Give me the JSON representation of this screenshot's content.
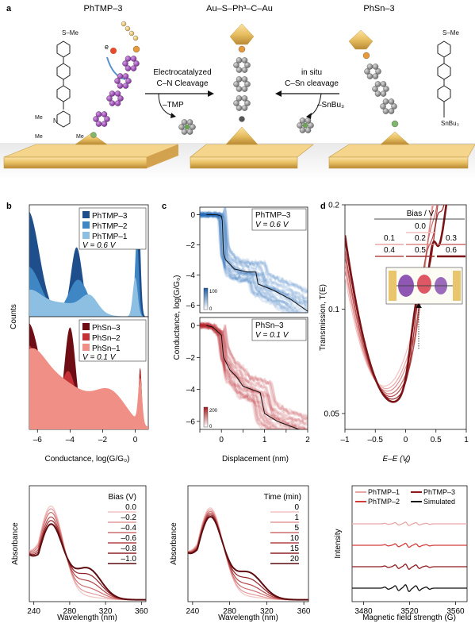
{
  "panel_a": {
    "letter": "a",
    "left_title": "PhTMP–3",
    "center_title": "Au–S–Ph³–C–Au",
    "right_title": "PhSn–3",
    "electron": "e",
    "left_arrow_line1": "Electrocatalyzed",
    "left_arrow_line2": "C–N Cleavage",
    "left_byproduct": "–TMP",
    "right_arrow_line1": "in situ",
    "right_arrow_line2": "C–Sn cleavage",
    "right_byproduct": "–SnBu₃",
    "left_mol_top": "S–Me",
    "left_mol_n": "N",
    "left_mol_me": "Me",
    "right_mol_top": "S–Me",
    "right_mol_bottom": "SnBu₃"
  },
  "panel_b": {
    "letter": "b",
    "ylabel": "Counts",
    "xlabel": "Conductance, log(G/G₀)",
    "top_legend": [
      "PhTMP–3",
      "PhTMP–2",
      "PhTMP–1"
    ],
    "top_bias": "V = 0.6 V",
    "bottom_legend": [
      "PhSn–3",
      "PhSn–2",
      "PhSn–1"
    ],
    "bottom_bias": "V = 0.1 V",
    "bias_sub": "Bias",
    "colors_top": [
      "#1f4e8c",
      "#3f86c4",
      "#8dbfe3"
    ],
    "colors_bottom": [
      "#6e0d14",
      "#c43136",
      "#ef8f86"
    ]
  },
  "panel_c": {
    "letter": "c",
    "ylabel": "Conductance, log(G/G₀)",
    "xlabel": "Displacement (nm)",
    "top_label": "PhTMP–3",
    "top_bias": "V = 0.6 V",
    "top_cbar_max": "100",
    "top_cbar_min": "0",
    "bottom_label": "PhSn–3",
    "bottom_bias": "V = 0.1 V",
    "bottom_cbar_max": "200",
    "bottom_cbar_min": "0",
    "bias_sub": "Bias"
  },
  "panel_d": {
    "letter": "d",
    "ylabel": "Transmission, T(E)",
    "xlabel": "E–E (V)",
    "xlabel_sub": "F",
    "legend_title": "Bias / V",
    "legend_items": [
      "0.0",
      "0.1",
      "0.2",
      "0.3",
      "0.4",
      "0.5",
      "0.6"
    ]
  },
  "panel_e": {
    "ylabel": "Absorbance",
    "xlabel": "Wavelength (nm)",
    "legend_title": "Bias (V)",
    "legend_items": [
      "0.0",
      "–0.2",
      "–0.4",
      "–0.6",
      "–0.8",
      "–1.0"
    ]
  },
  "panel_f": {
    "ylabel": "Absorbance",
    "xlabel": "Wavelength (nm)",
    "legend_title": "Time (min)",
    "legend_items": [
      "0",
      "1",
      "5",
      "10",
      "15",
      "20"
    ]
  },
  "panel_g": {
    "ylabel": "Intensity",
    "xlabel": "Magnetic field strength (G)",
    "legend_items": [
      "PhTMP–1",
      "PhTMP–3",
      "PhTMP–2",
      "Simulated"
    ]
  },
  "chart_data": [
    {
      "type": "area",
      "id": "b_top",
      "xlabel": "Conductance, log(G/G₀)",
      "ylabel": "Counts",
      "xlim": [
        -6.5,
        0.8
      ],
      "x_ticks": [
        -6,
        -4,
        -2,
        0
      ],
      "series": [
        {
          "name": "PhTMP–3",
          "peaks": [
            [
              -6.6,
              0.95,
              0.7
            ],
            [
              -3.6,
              0.62,
              0.35
            ],
            [
              0.2,
              0.95,
              0.12
            ]
          ]
        },
        {
          "name": "PhTMP–2",
          "peaks": [
            [
              -6.6,
              0.45,
              0.8
            ],
            [
              -3.5,
              0.33,
              0.6
            ],
            [
              0.1,
              0.7,
              0.12
            ]
          ]
        },
        {
          "name": "PhTMP–1",
          "peaks": [
            [
              -6.6,
              0.2,
              0.8
            ],
            [
              -4.5,
              0.12,
              1.4
            ],
            [
              -2.8,
              0.14,
              0.5
            ],
            [
              0.0,
              0.35,
              0.15
            ]
          ]
        }
      ]
    },
    {
      "type": "area",
      "id": "b_bottom",
      "xlim": [
        -6.5,
        0.8
      ],
      "x_ticks": [
        -6,
        -4,
        -2,
        0
      ],
      "series": [
        {
          "name": "PhSn–3",
          "peaks": [
            [
              -6.6,
              0.95,
              0.8
            ],
            [
              -4.0,
              0.9,
              0.35
            ],
            [
              0.3,
              0.55,
              0.1
            ]
          ]
        },
        {
          "name": "PhSn–2",
          "peaks": [
            [
              -6.6,
              0.75,
              0.9
            ],
            [
              -4.1,
              0.5,
              0.5
            ],
            [
              -1.5,
              0.2,
              0.8
            ],
            [
              0.3,
              0.5,
              0.1
            ]
          ]
        },
        {
          "name": "PhSn–1",
          "peaks": [
            [
              -6.6,
              0.55,
              1.0
            ],
            [
              -4.5,
              0.4,
              1.5
            ],
            [
              -1.5,
              0.3,
              1.0
            ],
            [
              0.3,
              0.4,
              0.12
            ]
          ]
        }
      ]
    },
    {
      "type": "heatmap",
      "id": "c_top",
      "xlim": [
        -0.5,
        2
      ],
      "ylim": [
        -6.5,
        0.5
      ],
      "x_ticks": [
        0,
        1,
        2
      ],
      "y_ticks": [
        0,
        -2,
        -4,
        -6
      ],
      "trace": [
        [
          -0.35,
          0.0
        ],
        [
          -0.1,
          0.0
        ],
        [
          0.0,
          -0.1
        ],
        [
          0.02,
          -0.4
        ],
        [
          0.05,
          -2.6
        ],
        [
          0.1,
          -3.0
        ],
        [
          0.3,
          -3.6
        ],
        [
          0.6,
          -3.8
        ],
        [
          0.8,
          -3.8
        ],
        [
          0.85,
          -4.6
        ],
        [
          1.2,
          -5.0
        ],
        [
          1.6,
          -5.6
        ],
        [
          2.0,
          -6.4
        ]
      ]
    },
    {
      "type": "heatmap",
      "id": "c_bottom",
      "xlim": [
        -0.5,
        2
      ],
      "ylim": [
        -6.5,
        0.5
      ],
      "x_ticks": [
        -0.5,
        0,
        0.5,
        1,
        1.5,
        2
      ],
      "x_tick_labels": [
        "",
        "0",
        "",
        "1",
        "",
        "2"
      ],
      "y_ticks": [
        0,
        -2,
        -4,
        -6
      ],
      "trace": [
        [
          -0.35,
          0.0
        ],
        [
          -0.2,
          -0.1
        ],
        [
          0.0,
          -0.6
        ],
        [
          0.05,
          -2.0
        ],
        [
          0.2,
          -2.8
        ],
        [
          0.35,
          -3.2
        ],
        [
          0.5,
          -3.8
        ],
        [
          0.7,
          -4.0
        ],
        [
          0.9,
          -4.2
        ],
        [
          1.0,
          -5.5
        ],
        [
          1.3,
          -6.0
        ],
        [
          1.8,
          -6.5
        ]
      ]
    },
    {
      "type": "line",
      "id": "d",
      "xlabel": "E–E_F (V)",
      "ylabel": "Transmission, T(E)",
      "xlim": [
        -1,
        1
      ],
      "yscale": "log",
      "ylim": [
        0.045,
        0.2
      ],
      "x_ticks": [
        -1,
        -0.5,
        0,
        0.5,
        1
      ],
      "y_ticks": [
        0.05,
        0.1,
        0.2
      ],
      "series": [
        {
          "name": "0.0",
          "minimum": [
            -0.35,
            0.06
          ],
          "peaks": [
            [
              0.55,
              0.1
            ],
            [
              0.75,
              0.1
            ]
          ]
        },
        {
          "name": "0.1",
          "minimum": [
            -0.32,
            0.059
          ],
          "peaks": [
            [
              0.5,
              0.098
            ],
            [
              0.7,
              0.098
            ]
          ]
        },
        {
          "name": "0.2",
          "minimum": [
            -0.3,
            0.058
          ],
          "peaks": [
            [
              0.45,
              0.096
            ],
            [
              0.66,
              0.096
            ]
          ]
        },
        {
          "name": "0.3",
          "minimum": [
            -0.27,
            0.057
          ],
          "peaks": [
            [
              0.4,
              0.094
            ],
            [
              0.62,
              0.093
            ]
          ]
        },
        {
          "name": "0.4",
          "minimum": [
            -0.25,
            0.056
          ],
          "peaks": [
            [
              0.35,
              0.092
            ],
            [
              0.58,
              0.091
            ]
          ]
        },
        {
          "name": "0.5",
          "minimum": [
            -0.22,
            0.055
          ],
          "peaks": [
            [
              0.28,
              0.09
            ],
            [
              0.52,
              0.089
            ]
          ]
        },
        {
          "name": "0.6",
          "minimum": [
            -0.2,
            0.054
          ],
          "peaks": [
            [
              0.22,
              0.088
            ],
            [
              0.45,
              0.087
            ]
          ]
        }
      ]
    },
    {
      "type": "line",
      "id": "e",
      "xlabel": "Wavelength (nm)",
      "ylabel": "Absorbance",
      "xlim": [
        235,
        365
      ],
      "x_ticks": [
        240,
        280,
        320,
        360
      ],
      "series": [
        {
          "name": "0.0",
          "peak": 1.0,
          "shoulder": 0.05
        },
        {
          "name": "–0.2",
          "peak": 0.97,
          "shoulder": 0.12
        },
        {
          "name": "–0.4",
          "peak": 0.93,
          "shoulder": 0.22
        },
        {
          "name": "–0.6",
          "peak": 0.88,
          "shoulder": 0.35
        },
        {
          "name": "–0.8",
          "peak": 0.84,
          "shoulder": 0.48
        },
        {
          "name": "–1.0",
          "peak": 0.8,
          "shoulder": 0.6
        }
      ]
    },
    {
      "type": "line",
      "id": "f",
      "xlabel": "Wavelength (nm)",
      "ylabel": "Absorbance",
      "xlim": [
        235,
        365
      ],
      "x_ticks": [
        240,
        280,
        320,
        360
      ],
      "series": [
        {
          "name": "0",
          "peak": 0.98,
          "shoulder": 0.05
        },
        {
          "name": "1",
          "peak": 0.96,
          "shoulder": 0.1
        },
        {
          "name": "5",
          "peak": 0.94,
          "shoulder": 0.18
        },
        {
          "name": "10",
          "peak": 0.92,
          "shoulder": 0.28
        },
        {
          "name": "15",
          "peak": 0.9,
          "shoulder": 0.4
        },
        {
          "name": "20",
          "peak": 0.88,
          "shoulder": 0.52
        }
      ]
    },
    {
      "type": "line",
      "id": "g",
      "xlabel": "Magnetic field strength (G)",
      "ylabel": "Intensity",
      "xlim": [
        3470,
        3570
      ],
      "x_ticks": [
        3480,
        3520,
        3560
      ],
      "series": [
        {
          "name": "PhTMP–1",
          "amplitude": 0.5
        },
        {
          "name": "PhTMP–2",
          "amplitude": 0.6
        },
        {
          "name": "PhTMP–3",
          "amplitude": 0.75
        },
        {
          "name": "Simulated",
          "amplitude": 1.0
        }
      ]
    }
  ]
}
